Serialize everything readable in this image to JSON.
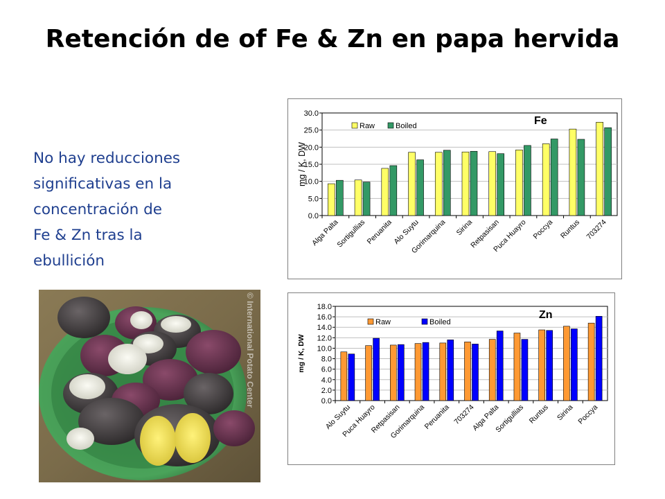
{
  "slide": {
    "title": "Retención de of Fe & Zn en papa hervida",
    "body_lines": [
      "No hay reducciones",
      "significativas en la",
      "concentración de",
      "Fe & Zn tras la",
      "ebullición"
    ],
    "photo_watermark": "© International Potato Center"
  },
  "colors": {
    "body_text": "#1f3f8f",
    "fe_raw": "#ffff66",
    "fe_boiled": "#339966",
    "zn_raw": "#ff9933",
    "zn_boiled": "#0000ff"
  },
  "chart_data": [
    {
      "type": "bar",
      "annotation": "Fe",
      "ylabel": "mg / K, DW",
      "ylim": [
        0,
        30
      ],
      "yticks": [
        "0.0",
        "5.0",
        "10.0",
        "15.0",
        "20.0",
        "25.0",
        "30.0"
      ],
      "legend_position": "top-left",
      "grid": true,
      "categories": [
        "Alga Palta",
        "Sortigullias",
        "Peruanita",
        "Alo Suytu",
        "Gorimarquina",
        "Sirina",
        "Retpasisan",
        "Puca Huayro",
        "Poccya",
        "Runtus",
        "703274"
      ],
      "series": [
        {
          "name": "Raw",
          "values": [
            9.3,
            10.4,
            13.8,
            18.5,
            18.5,
            18.6,
            18.7,
            19.2,
            21.0,
            25.3,
            27.3
          ]
        },
        {
          "name": "Boiled",
          "values": [
            10.3,
            9.8,
            14.6,
            16.3,
            19.1,
            18.8,
            18.1,
            20.5,
            22.4,
            22.3,
            25.7
          ]
        }
      ]
    },
    {
      "type": "bar",
      "annotation": "Zn",
      "ylabel": "mg / K, DW",
      "ylim": [
        0,
        18
      ],
      "yticks": [
        "0.0",
        "2.0",
        "4.0",
        "6.0",
        "8.0",
        "10.0",
        "12.0",
        "14.0",
        "16.0",
        "18.0"
      ],
      "legend_position": "top-left",
      "grid": true,
      "categories": [
        "Alo Suytu",
        "Puca Huayro",
        "Retpasisan",
        "Gorimarquina",
        "Peruanita",
        "703274",
        "Alga Palta",
        "Sortigullias",
        "Runtus",
        "Sirina",
        "Poccya"
      ],
      "series": [
        {
          "name": "Raw",
          "values": [
            9.3,
            10.5,
            10.6,
            10.9,
            11.0,
            11.2,
            11.7,
            12.9,
            13.5,
            14.2,
            14.8
          ]
        },
        {
          "name": "Boiled",
          "values": [
            8.9,
            11.9,
            10.7,
            11.1,
            11.6,
            10.8,
            13.3,
            11.7,
            13.4,
            13.7,
            16.1
          ]
        }
      ]
    }
  ]
}
